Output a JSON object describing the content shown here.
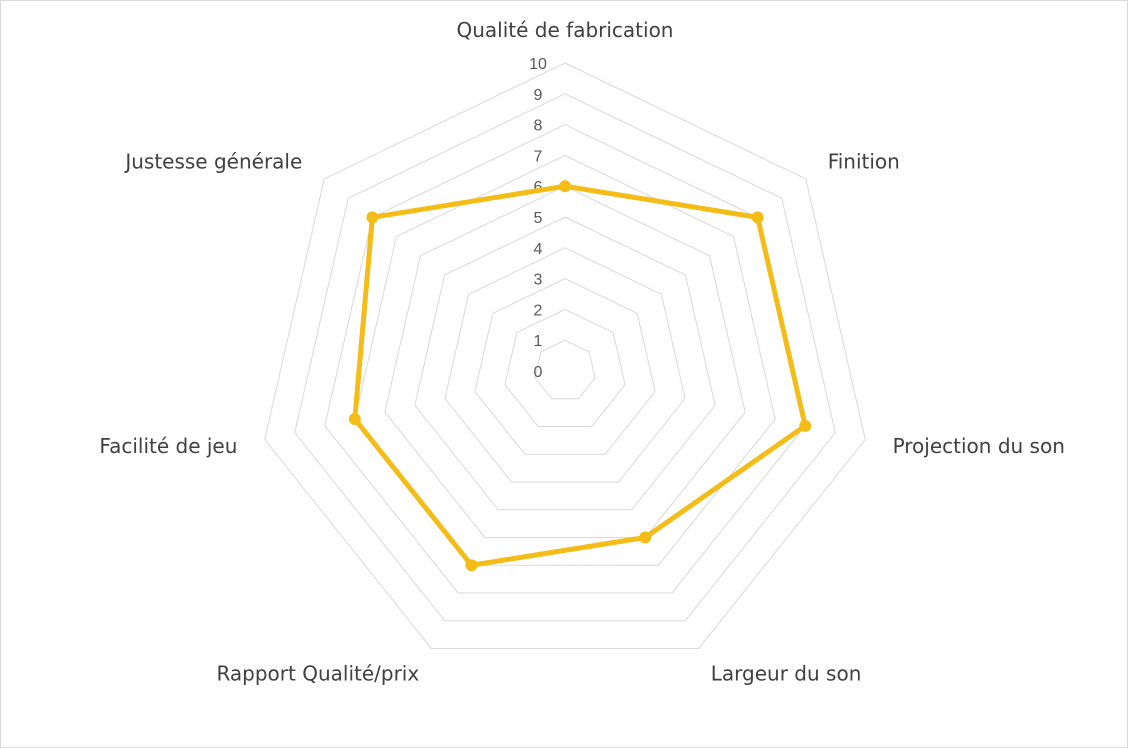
{
  "chart_data": {
    "type": "radar",
    "categories": [
      "Qualité de fabrication",
      "Finition",
      "Projection du son",
      "Largeur du son",
      "Rapport Qualité/prix",
      "Facilité de jeu",
      "Justesse générale"
    ],
    "series": [
      {
        "values": [
          6,
          8,
          8,
          6,
          7,
          7,
          8
        ],
        "color": "#F4BC17"
      }
    ],
    "rlim": [
      0,
      10
    ],
    "ticks": [
      "0",
      "1",
      "2",
      "3",
      "4",
      "5",
      "6",
      "7",
      "8",
      "9",
      "10"
    ],
    "grid": true,
    "legend": "none",
    "title": ""
  }
}
